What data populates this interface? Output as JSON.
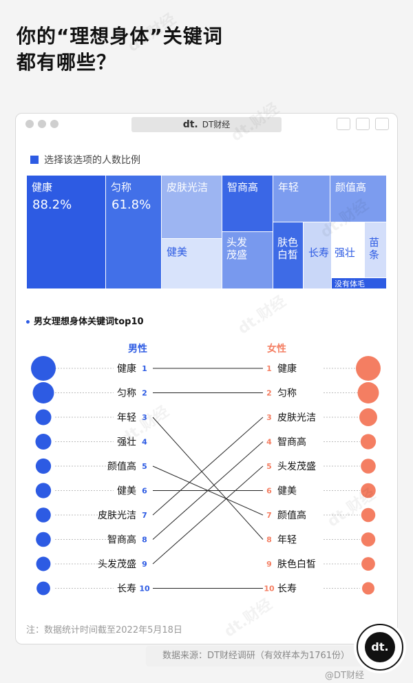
{
  "title_line1": "你的“理想身体”关键词",
  "title_line2": "都有哪些？",
  "window": {
    "brand_mark": "dt.",
    "brand_name": "DT财经"
  },
  "treemap_legend": "选择该选项的人数比例",
  "section_title": "男女理想身体关键词top10",
  "men_header": "男性",
  "women_header": "女性",
  "note": "注：数据统计时间截至2022年5月18日",
  "source": "数据来源：DT财经调研（有效样本为1761份）",
  "footer": "@DT财经",
  "badge": "dt.",
  "watermark": "dt.财经",
  "colors": {
    "blue": "#2d5be3",
    "orange": "#f47e62"
  },
  "chart_data": [
    {
      "type": "treemap",
      "items": [
        {
          "label": "健康",
          "value": "88.2%"
        },
        {
          "label": "匀称",
          "value": "61.8%"
        },
        {
          "label": "皮肤光洁"
        },
        {
          "label": "健美"
        },
        {
          "label": "智商高"
        },
        {
          "label": "头发茂盛"
        },
        {
          "label": "年轻"
        },
        {
          "label": "颜值高"
        },
        {
          "label": "肤色白皙"
        },
        {
          "label": "长寿"
        },
        {
          "label": "强壮"
        },
        {
          "label": "苗条"
        },
        {
          "label": "没有体毛"
        }
      ]
    },
    {
      "type": "slope",
      "ranks": [
        1,
        2,
        3,
        4,
        5,
        6,
        7,
        8,
        9,
        10
      ],
      "men": [
        "健康",
        "匀称",
        "年轻",
        "强壮",
        "颜值高",
        "健美",
        "皮肤光洁",
        "智商高",
        "头发茂盛",
        "长寿"
      ],
      "women": [
        "健康",
        "匀称",
        "皮肤光洁",
        "智商高",
        "头发茂盛",
        "健美",
        "颜值高",
        "年轻",
        "肤色白皙",
        "长寿"
      ],
      "men_bubble_size": [
        1.0,
        0.86,
        0.64,
        0.64,
        0.62,
        0.62,
        0.6,
        0.6,
        0.58,
        0.55
      ],
      "women_bubble_size": [
        1.0,
        0.86,
        0.72,
        0.62,
        0.6,
        0.6,
        0.57,
        0.57,
        0.55,
        0.5
      ]
    }
  ]
}
